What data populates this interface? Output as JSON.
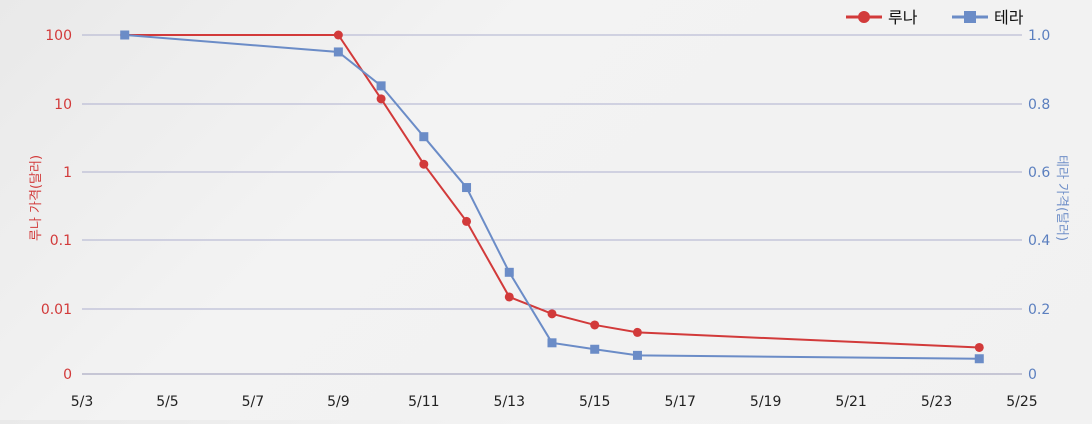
{
  "chart_data": {
    "type": "line",
    "title": "",
    "x_categories": [
      "5/3",
      "5/5",
      "5/7",
      "5/9",
      "5/11",
      "5/13",
      "5/15",
      "5/17",
      "5/19",
      "5/21",
      "5/23",
      "5/25"
    ],
    "x_range_days": [
      "5/3",
      "5/25"
    ],
    "left_axis": {
      "label": "루나 가격(달러)",
      "scale": "log",
      "ticks": [
        "0",
        "0.01",
        "0.1",
        "1",
        "10",
        "100"
      ],
      "color": "#d23a3a"
    },
    "right_axis": {
      "label": "테라 가격(달러)",
      "scale": "linear",
      "ylim": [
        0,
        1.0
      ],
      "ticks": [
        "0",
        "0.2",
        "0.4",
        "0.6",
        "0.8",
        "1.0"
      ],
      "color": "#5b7fbf"
    },
    "legend": {
      "placement": "top-right"
    },
    "grid": true,
    "series": [
      {
        "name": "루나",
        "axis": "left",
        "color": "#d23a3a",
        "marker": "circle",
        "points": [
          {
            "x": "5/4",
            "y": 100
          },
          {
            "x": "5/9",
            "y": 100
          },
          {
            "x": "5/10",
            "y": 11.7
          },
          {
            "x": "5/11",
            "y": 1.3
          },
          {
            "x": "5/12",
            "y": 0.19
          },
          {
            "x": "5/13",
            "y": 0.015
          },
          {
            "x": "5/14",
            "y": 0.008
          },
          {
            "x": "5/15",
            "y": 0.0048
          },
          {
            "x": "5/16",
            "y": 0.0034
          },
          {
            "x": "5/24",
            "y": 0.0017
          }
        ]
      },
      {
        "name": "테라",
        "axis": "right",
        "color": "#6b8cc7",
        "marker": "square",
        "points": [
          {
            "x": "5/4",
            "y": 1.0
          },
          {
            "x": "5/9",
            "y": 0.95
          },
          {
            "x": "5/10",
            "y": 0.85
          },
          {
            "x": "5/11",
            "y": 0.7
          },
          {
            "x": "5/12",
            "y": 0.55
          },
          {
            "x": "5/13",
            "y": 0.3
          },
          {
            "x": "5/14",
            "y": 0.092
          },
          {
            "x": "5/15",
            "y": 0.073
          },
          {
            "x": "5/16",
            "y": 0.055
          },
          {
            "x": "5/24",
            "y": 0.045
          }
        ]
      }
    ]
  }
}
